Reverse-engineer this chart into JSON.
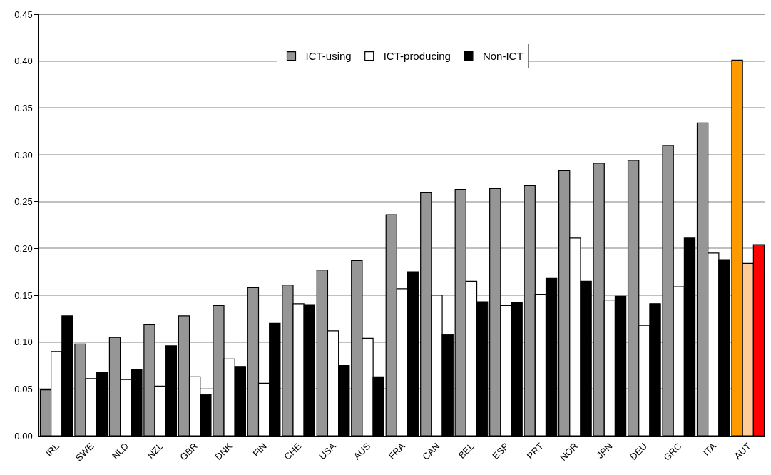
{
  "chart_data": {
    "type": "bar",
    "categories": [
      "IRL",
      "SWE",
      "NLD",
      "NZL",
      "GBR",
      "DNK",
      "FIN",
      "CHE",
      "USA",
      "AUS",
      "FRA",
      "CAN",
      "BEL",
      "ESP",
      "PRT",
      "NOR",
      "JPN",
      "DEU",
      "GRC",
      "ITA",
      "AUT"
    ],
    "series": [
      {
        "name": "ICT-using",
        "colors": [
          "#969696",
          "#969696",
          "#969696",
          "#969696",
          "#969696",
          "#969696",
          "#969696",
          "#969696",
          "#969696",
          "#969696",
          "#969696",
          "#969696",
          "#969696",
          "#969696",
          "#969696",
          "#969696",
          "#969696",
          "#969696",
          "#969696",
          "#969696",
          "#ff9900"
        ],
        "values": [
          0.049,
          0.098,
          0.105,
          0.119,
          0.128,
          0.139,
          0.158,
          0.161,
          0.177,
          0.187,
          0.236,
          0.26,
          0.263,
          0.264,
          0.267,
          0.283,
          0.291,
          0.294,
          0.31,
          0.334,
          0.401
        ]
      },
      {
        "name": "ICT-producing",
        "colors": [
          "#ffffff",
          "#ffffff",
          "#ffffff",
          "#ffffff",
          "#ffffff",
          "#ffffff",
          "#ffffff",
          "#ffffff",
          "#ffffff",
          "#ffffff",
          "#ffffff",
          "#ffffff",
          "#ffffff",
          "#ffffff",
          "#ffffff",
          "#ffffff",
          "#ffffff",
          "#ffffff",
          "#ffffff",
          "#ffffff",
          "#ffcc99"
        ],
        "values": [
          0.09,
          0.061,
          0.06,
          0.053,
          0.063,
          0.082,
          0.056,
          0.141,
          0.112,
          0.104,
          0.157,
          0.15,
          0.165,
          0.139,
          0.151,
          0.211,
          0.145,
          0.118,
          0.159,
          0.195,
          0.184
        ]
      },
      {
        "name": "Non-ICT",
        "colors": [
          "#000000",
          "#000000",
          "#000000",
          "#000000",
          "#000000",
          "#000000",
          "#000000",
          "#000000",
          "#000000",
          "#000000",
          "#000000",
          "#000000",
          "#000000",
          "#000000",
          "#000000",
          "#000000",
          "#000000",
          "#000000",
          "#000000",
          "#000000",
          "#ff0000"
        ],
        "values": [
          0.128,
          0.068,
          0.071,
          0.096,
          0.044,
          0.074,
          0.12,
          0.14,
          0.075,
          0.063,
          0.175,
          0.108,
          0.143,
          0.142,
          0.168,
          0.165,
          0.149,
          0.141,
          0.211,
          0.188,
          0.204
        ]
      }
    ],
    "ylim": [
      0,
      0.45
    ],
    "yticks": [
      {
        "value": 0,
        "label": "0.00"
      },
      {
        "value": 0.05,
        "label": "0.05"
      },
      {
        "value": 0.1,
        "label": "0.10"
      },
      {
        "value": 0.15,
        "label": "0.15"
      },
      {
        "value": 0.2,
        "label": "0.20"
      },
      {
        "value": 0.25,
        "label": "0.25"
      },
      {
        "value": 0.3,
        "label": "0.30"
      },
      {
        "value": 0.35,
        "label": "0.35"
      },
      {
        "value": 0.4,
        "label": "0.40"
      },
      {
        "value": 0.45,
        "label": "0.45"
      }
    ],
    "grid": "y",
    "legend": "top"
  }
}
